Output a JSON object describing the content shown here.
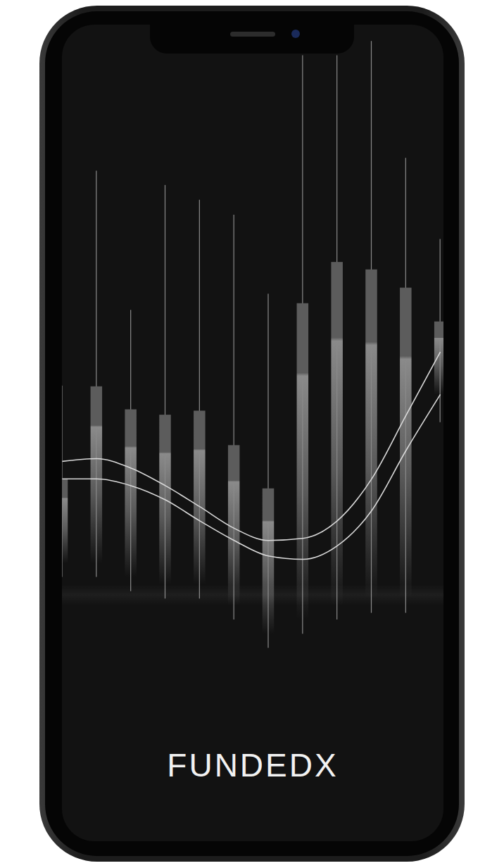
{
  "chart_data": {
    "type": "candlestick",
    "title": "FUNDEDX",
    "categories": [
      null,
      null,
      null,
      null,
      null,
      null,
      null,
      null,
      null,
      null,
      null,
      null
    ],
    "open": [
      33.3,
      47.0,
      43.6,
      42.8,
      43.4,
      38.3,
      31.9,
      59.3,
      65.4,
      64.3,
      61.6,
      56.6
    ],
    "high": [
      47.1,
      78.9,
      58.3,
      76.8,
      74.6,
      72.4,
      60.7,
      96.0,
      96.0,
      98.1,
      80.8,
      68.8
    ],
    "low": [
      18.8,
      18.8,
      16.7,
      15.6,
      15.6,
      12.5,
      8.3,
      10.4,
      12.5,
      13.5,
      13.5,
      41.7
    ],
    "close": [
      20.8,
      20.8,
      18.8,
      17.7,
      17.7,
      14.6,
      10.4,
      12.5,
      14.6,
      15.6,
      15.6,
      45.8
    ],
    "color": "#8a8a8a",
    "series": [
      {
        "type": "line",
        "color": "#d9d9d9",
        "values": [
          35.9,
          36.3,
          34.9,
          32.3,
          29.2,
          26.0,
          24.2,
          24.5,
          27.1,
          33.3,
          42.7,
          52.1
        ]
      },
      {
        "type": "line",
        "color": "#d9d9d9",
        "values": [
          33.3,
          33.3,
          32.3,
          30.2,
          27.1,
          24.2,
          21.9,
          21.4,
          23.4,
          28.6,
          37.5,
          45.8
        ]
      }
    ],
    "ylim": [
      0,
      100
    ],
    "tick_labels": false,
    "grid": false
  }
}
